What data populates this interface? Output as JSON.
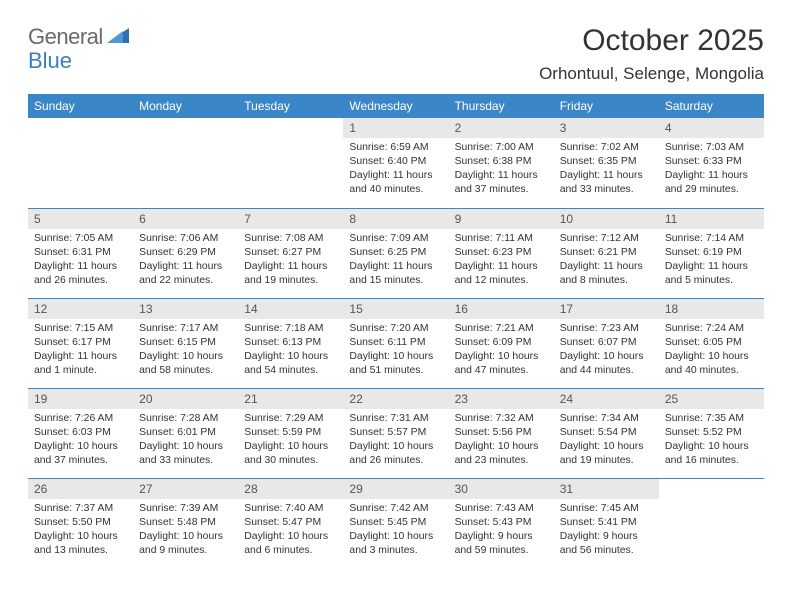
{
  "logo": {
    "word1": "General",
    "word2": "Blue"
  },
  "title": "October 2025",
  "location": "Orhontuul, Selenge, Mongolia",
  "colors": {
    "header_bg": "#3b86c6",
    "header_fg": "#ffffff",
    "daynum_bg": "#e8e8e8",
    "border": "#3b86c6",
    "logo_gray": "#6a6a6a",
    "logo_blue": "#3a7fbf",
    "text": "#333333"
  },
  "weekdays": [
    "Sunday",
    "Monday",
    "Tuesday",
    "Wednesday",
    "Thursday",
    "Friday",
    "Saturday"
  ],
  "weeks": [
    [
      null,
      null,
      null,
      {
        "n": "1",
        "sunrise": "6:59 AM",
        "sunset": "6:40 PM",
        "daylight": "11 hours and 40 minutes."
      },
      {
        "n": "2",
        "sunrise": "7:00 AM",
        "sunset": "6:38 PM",
        "daylight": "11 hours and 37 minutes."
      },
      {
        "n": "3",
        "sunrise": "7:02 AM",
        "sunset": "6:35 PM",
        "daylight": "11 hours and 33 minutes."
      },
      {
        "n": "4",
        "sunrise": "7:03 AM",
        "sunset": "6:33 PM",
        "daylight": "11 hours and 29 minutes."
      }
    ],
    [
      {
        "n": "5",
        "sunrise": "7:05 AM",
        "sunset": "6:31 PM",
        "daylight": "11 hours and 26 minutes."
      },
      {
        "n": "6",
        "sunrise": "7:06 AM",
        "sunset": "6:29 PM",
        "daylight": "11 hours and 22 minutes."
      },
      {
        "n": "7",
        "sunrise": "7:08 AM",
        "sunset": "6:27 PM",
        "daylight": "11 hours and 19 minutes."
      },
      {
        "n": "8",
        "sunrise": "7:09 AM",
        "sunset": "6:25 PM",
        "daylight": "11 hours and 15 minutes."
      },
      {
        "n": "9",
        "sunrise": "7:11 AM",
        "sunset": "6:23 PM",
        "daylight": "11 hours and 12 minutes."
      },
      {
        "n": "10",
        "sunrise": "7:12 AM",
        "sunset": "6:21 PM",
        "daylight": "11 hours and 8 minutes."
      },
      {
        "n": "11",
        "sunrise": "7:14 AM",
        "sunset": "6:19 PM",
        "daylight": "11 hours and 5 minutes."
      }
    ],
    [
      {
        "n": "12",
        "sunrise": "7:15 AM",
        "sunset": "6:17 PM",
        "daylight": "11 hours and 1 minute."
      },
      {
        "n": "13",
        "sunrise": "7:17 AM",
        "sunset": "6:15 PM",
        "daylight": "10 hours and 58 minutes."
      },
      {
        "n": "14",
        "sunrise": "7:18 AM",
        "sunset": "6:13 PM",
        "daylight": "10 hours and 54 minutes."
      },
      {
        "n": "15",
        "sunrise": "7:20 AM",
        "sunset": "6:11 PM",
        "daylight": "10 hours and 51 minutes."
      },
      {
        "n": "16",
        "sunrise": "7:21 AM",
        "sunset": "6:09 PM",
        "daylight": "10 hours and 47 minutes."
      },
      {
        "n": "17",
        "sunrise": "7:23 AM",
        "sunset": "6:07 PM",
        "daylight": "10 hours and 44 minutes."
      },
      {
        "n": "18",
        "sunrise": "7:24 AM",
        "sunset": "6:05 PM",
        "daylight": "10 hours and 40 minutes."
      }
    ],
    [
      {
        "n": "19",
        "sunrise": "7:26 AM",
        "sunset": "6:03 PM",
        "daylight": "10 hours and 37 minutes."
      },
      {
        "n": "20",
        "sunrise": "7:28 AM",
        "sunset": "6:01 PM",
        "daylight": "10 hours and 33 minutes."
      },
      {
        "n": "21",
        "sunrise": "7:29 AM",
        "sunset": "5:59 PM",
        "daylight": "10 hours and 30 minutes."
      },
      {
        "n": "22",
        "sunrise": "7:31 AM",
        "sunset": "5:57 PM",
        "daylight": "10 hours and 26 minutes."
      },
      {
        "n": "23",
        "sunrise": "7:32 AM",
        "sunset": "5:56 PM",
        "daylight": "10 hours and 23 minutes."
      },
      {
        "n": "24",
        "sunrise": "7:34 AM",
        "sunset": "5:54 PM",
        "daylight": "10 hours and 19 minutes."
      },
      {
        "n": "25",
        "sunrise": "7:35 AM",
        "sunset": "5:52 PM",
        "daylight": "10 hours and 16 minutes."
      }
    ],
    [
      {
        "n": "26",
        "sunrise": "7:37 AM",
        "sunset": "5:50 PM",
        "daylight": "10 hours and 13 minutes."
      },
      {
        "n": "27",
        "sunrise": "7:39 AM",
        "sunset": "5:48 PM",
        "daylight": "10 hours and 9 minutes."
      },
      {
        "n": "28",
        "sunrise": "7:40 AM",
        "sunset": "5:47 PM",
        "daylight": "10 hours and 6 minutes."
      },
      {
        "n": "29",
        "sunrise": "7:42 AM",
        "sunset": "5:45 PM",
        "daylight": "10 hours and 3 minutes."
      },
      {
        "n": "30",
        "sunrise": "7:43 AM",
        "sunset": "5:43 PM",
        "daylight": "9 hours and 59 minutes."
      },
      {
        "n": "31",
        "sunrise": "7:45 AM",
        "sunset": "5:41 PM",
        "daylight": "9 hours and 56 minutes."
      },
      null
    ]
  ],
  "labels": {
    "sunrise": "Sunrise:",
    "sunset": "Sunset:",
    "daylight": "Daylight:"
  }
}
